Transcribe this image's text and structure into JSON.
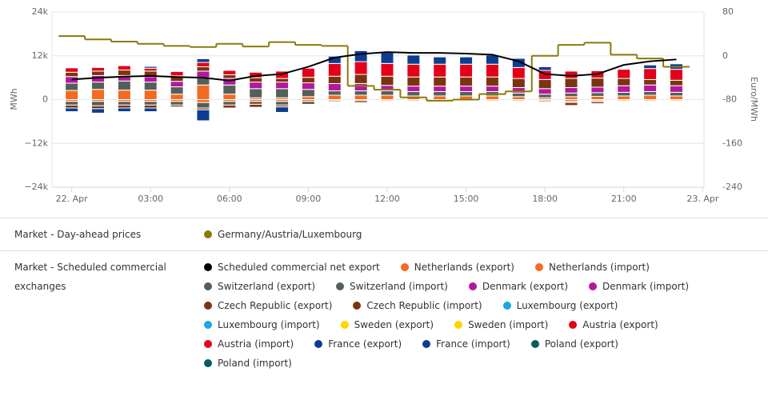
{
  "chart_data": {
    "type": "bar",
    "y_label": "MWh",
    "y2_label": "Euro/MWh",
    "x": [
      0,
      1,
      2,
      3,
      4,
      5,
      6,
      7,
      8,
      9,
      10,
      11,
      12,
      13,
      14,
      15,
      16,
      17,
      18,
      19,
      20,
      21,
      22,
      23
    ],
    "xlim": [
      -0.75,
      24.05
    ],
    "xticks": [
      {
        "value": 0,
        "label": "22. Apr"
      },
      {
        "value": 3,
        "label": "03:00"
      },
      {
        "value": 6,
        "label": "06:00"
      },
      {
        "value": 9,
        "label": "09:00"
      },
      {
        "value": 12,
        "label": "12:00"
      },
      {
        "value": 15,
        "label": "15:00"
      },
      {
        "value": 18,
        "label": "18:00"
      },
      {
        "value": 21,
        "label": "21:00"
      },
      {
        "value": 24,
        "label": "23. Apr"
      }
    ],
    "ylim": [
      -24000,
      24000
    ],
    "yticks": [
      {
        "value": -24000,
        "label": "−24k"
      },
      {
        "value": -12000,
        "label": "−12k"
      },
      0,
      {
        "value": 12000,
        "label": "12k"
      },
      {
        "value": 24000,
        "label": "24k"
      }
    ],
    "y2lim": [
      -240,
      80
    ],
    "y2ticks": [
      -240,
      -160,
      -80,
      0,
      80
    ],
    "grid": true,
    "legend_groups": [
      "Market - Day-ahead prices",
      "Market - Scheduled commercial exchanges"
    ],
    "series": [
      {
        "name": "Germany/Austria/Luxembourg",
        "type": "step",
        "axis": "y2",
        "color": "#8c7a0a",
        "values": [
          36,
          30,
          26,
          22,
          18,
          16,
          22,
          17,
          25,
          20,
          18,
          -55,
          -62,
          -76,
          -82,
          -80,
          -70,
          -65,
          0,
          20,
          24,
          2,
          -5,
          -20
        ]
      },
      {
        "name": "Scheduled commercial net export",
        "type": "line",
        "color": "#000000",
        "values": [
          5500,
          6000,
          6300,
          6500,
          6200,
          6000,
          5200,
          6500,
          7000,
          9000,
          11500,
          12500,
          13000,
          12800,
          12800,
          12600,
          12300,
          10500,
          7000,
          6500,
          7000,
          9500,
          10500,
          11000
        ]
      },
      {
        "name": "Netherlands (export)",
        "color": "#f26b21",
        "values": [
          2500,
          2800,
          2600,
          2600,
          1500,
          4000,
          1500,
          500,
          500,
          800,
          1200,
          1200,
          1200,
          1000,
          1000,
          1000,
          1000,
          800,
          500,
          800,
          900,
          1000,
          1200,
          1000
        ]
      },
      {
        "name": "Netherlands (import)",
        "color": "#f26b21",
        "values": [
          -500,
          -500,
          -500,
          -500,
          -500,
          -800,
          -500,
          -500,
          -500,
          -500,
          -300,
          -300,
          -300,
          -300,
          -300,
          -300,
          -300,
          -300,
          -300,
          -500,
          -300,
          -300,
          -300,
          -300
        ]
      },
      {
        "name": "Switzerland (export)",
        "color": "#52605a",
        "values": [
          2000,
          2000,
          2500,
          2200,
          2000,
          2000,
          2500,
          2500,
          2500,
          2000,
          1200,
          1200,
          1200,
          1200,
          1200,
          1200,
          1200,
          1000,
          1000,
          1000,
          1000,
          1000,
          1000,
          1000
        ]
      },
      {
        "name": "Switzerland (import)",
        "color": "#52605a",
        "values": [
          -1000,
          -1200,
          -1000,
          -1000,
          -1000,
          -1500,
          -1000,
          -800,
          -1000,
          -800,
          -300,
          0,
          0,
          0,
          0,
          0,
          0,
          0,
          0,
          -300,
          -300,
          0,
          0,
          0
        ]
      },
      {
        "name": "Denmark (export)",
        "color": "#b5179e",
        "values": [
          1800,
          1800,
          1500,
          1500,
          1500,
          1800,
          1800,
          1800,
          1800,
          1800,
          2000,
          2000,
          1500,
          1500,
          1500,
          1500,
          1500,
          1500,
          1500,
          1500,
          1500,
          1800,
          1800,
          1800
        ]
      },
      {
        "name": "Denmark (import)",
        "color": "#b5179e",
        "values": [
          0,
          0,
          0,
          0,
          0,
          0,
          0,
          0,
          0,
          0,
          0,
          0,
          0,
          0,
          0,
          0,
          0,
          0,
          0,
          0,
          0,
          0,
          0,
          0
        ]
      },
      {
        "name": "Czech Republic (export)",
        "color": "#7b3410",
        "values": [
          1200,
          1200,
          1500,
          1500,
          1500,
          1200,
          1000,
          1200,
          1000,
          1500,
          2000,
          2500,
          2500,
          2500,
          2500,
          2500,
          2500,
          2500,
          2500,
          2500,
          2500,
          2000,
          1500,
          1500
        ]
      },
      {
        "name": "Czech Republic (import)",
        "color": "#7b3410",
        "values": [
          -800,
          -800,
          -800,
          -800,
          -500,
          -500,
          -800,
          -800,
          -500,
          0,
          0,
          -500,
          0,
          0,
          0,
          0,
          0,
          0,
          -300,
          -800,
          -500,
          0,
          0,
          0
        ]
      },
      {
        "name": "Luxembourg (export)",
        "color": "#1ea7e1",
        "values": [
          0,
          0,
          0,
          0,
          0,
          0,
          0,
          0,
          0,
          0,
          0,
          0,
          0,
          0,
          0,
          0,
          0,
          0,
          0,
          0,
          0,
          0,
          0,
          0
        ]
      },
      {
        "name": "Luxembourg (import)",
        "color": "#1ea7e1",
        "values": [
          0,
          0,
          0,
          0,
          0,
          0,
          0,
          0,
          0,
          0,
          0,
          0,
          0,
          0,
          0,
          0,
          0,
          0,
          0,
          0,
          0,
          0,
          0,
          0
        ]
      },
      {
        "name": "Sweden (export)",
        "color": "#ffd400",
        "values": [
          0,
          0,
          0,
          0,
          0,
          0,
          0,
          0,
          0,
          0,
          0,
          0,
          0,
          0,
          0,
          0,
          0,
          0,
          0,
          0,
          0,
          0,
          0,
          0
        ]
      },
      {
        "name": "Sweden (import)",
        "color": "#ffd400",
        "values": [
          0,
          0,
          0,
          0,
          0,
          0,
          0,
          0,
          0,
          0,
          0,
          0,
          0,
          0,
          0,
          0,
          0,
          0,
          0,
          0,
          0,
          0,
          0,
          0
        ]
      },
      {
        "name": "Austria (export)",
        "color": "#e2001a",
        "values": [
          1200,
          1000,
          1200,
          800,
          1200,
          1200,
          1200,
          1500,
          2000,
          2500,
          3500,
          3500,
          3500,
          3500,
          3500,
          3500,
          3500,
          3000,
          2500,
          2000,
          2000,
          2500,
          3000,
          3000
        ]
      },
      {
        "name": "Austria (import)",
        "color": "#e2001a",
        "values": [
          0,
          0,
          0,
          0,
          0,
          0,
          0,
          0,
          0,
          0,
          0,
          0,
          0,
          0,
          0,
          0,
          0,
          0,
          0,
          0,
          0,
          0,
          0,
          0
        ]
      },
      {
        "name": "France (export)",
        "color": "#0b3d91",
        "values": [
          0,
          0,
          0,
          500,
          0,
          1000,
          0,
          0,
          0,
          0,
          2000,
          3000,
          3000,
          2500,
          2000,
          2000,
          2500,
          2500,
          1000,
          0,
          0,
          0,
          1000,
          1500
        ]
      },
      {
        "name": "France (import)",
        "color": "#0b3d91",
        "values": [
          -1000,
          -1200,
          -1000,
          -1000,
          0,
          -3000,
          0,
          0,
          -1500,
          0,
          0,
          0,
          0,
          0,
          0,
          0,
          0,
          0,
          0,
          0,
          0,
          0,
          0,
          0
        ]
      },
      {
        "name": "Poland (export)",
        "color": "#0a5c5c",
        "values": [
          0,
          0,
          0,
          0,
          0,
          0,
          0,
          0,
          0,
          0,
          0,
          0,
          0,
          0,
          0,
          0,
          0,
          0,
          0,
          0,
          0,
          0,
          0,
          0
        ]
      },
      {
        "name": "Poland (import)",
        "color": "#0a5c5c",
        "values": [
          0,
          0,
          0,
          0,
          0,
          0,
          0,
          0,
          0,
          0,
          0,
          0,
          0,
          0,
          0,
          0,
          0,
          0,
          0,
          0,
          0,
          0,
          0,
          0
        ]
      }
    ]
  }
}
